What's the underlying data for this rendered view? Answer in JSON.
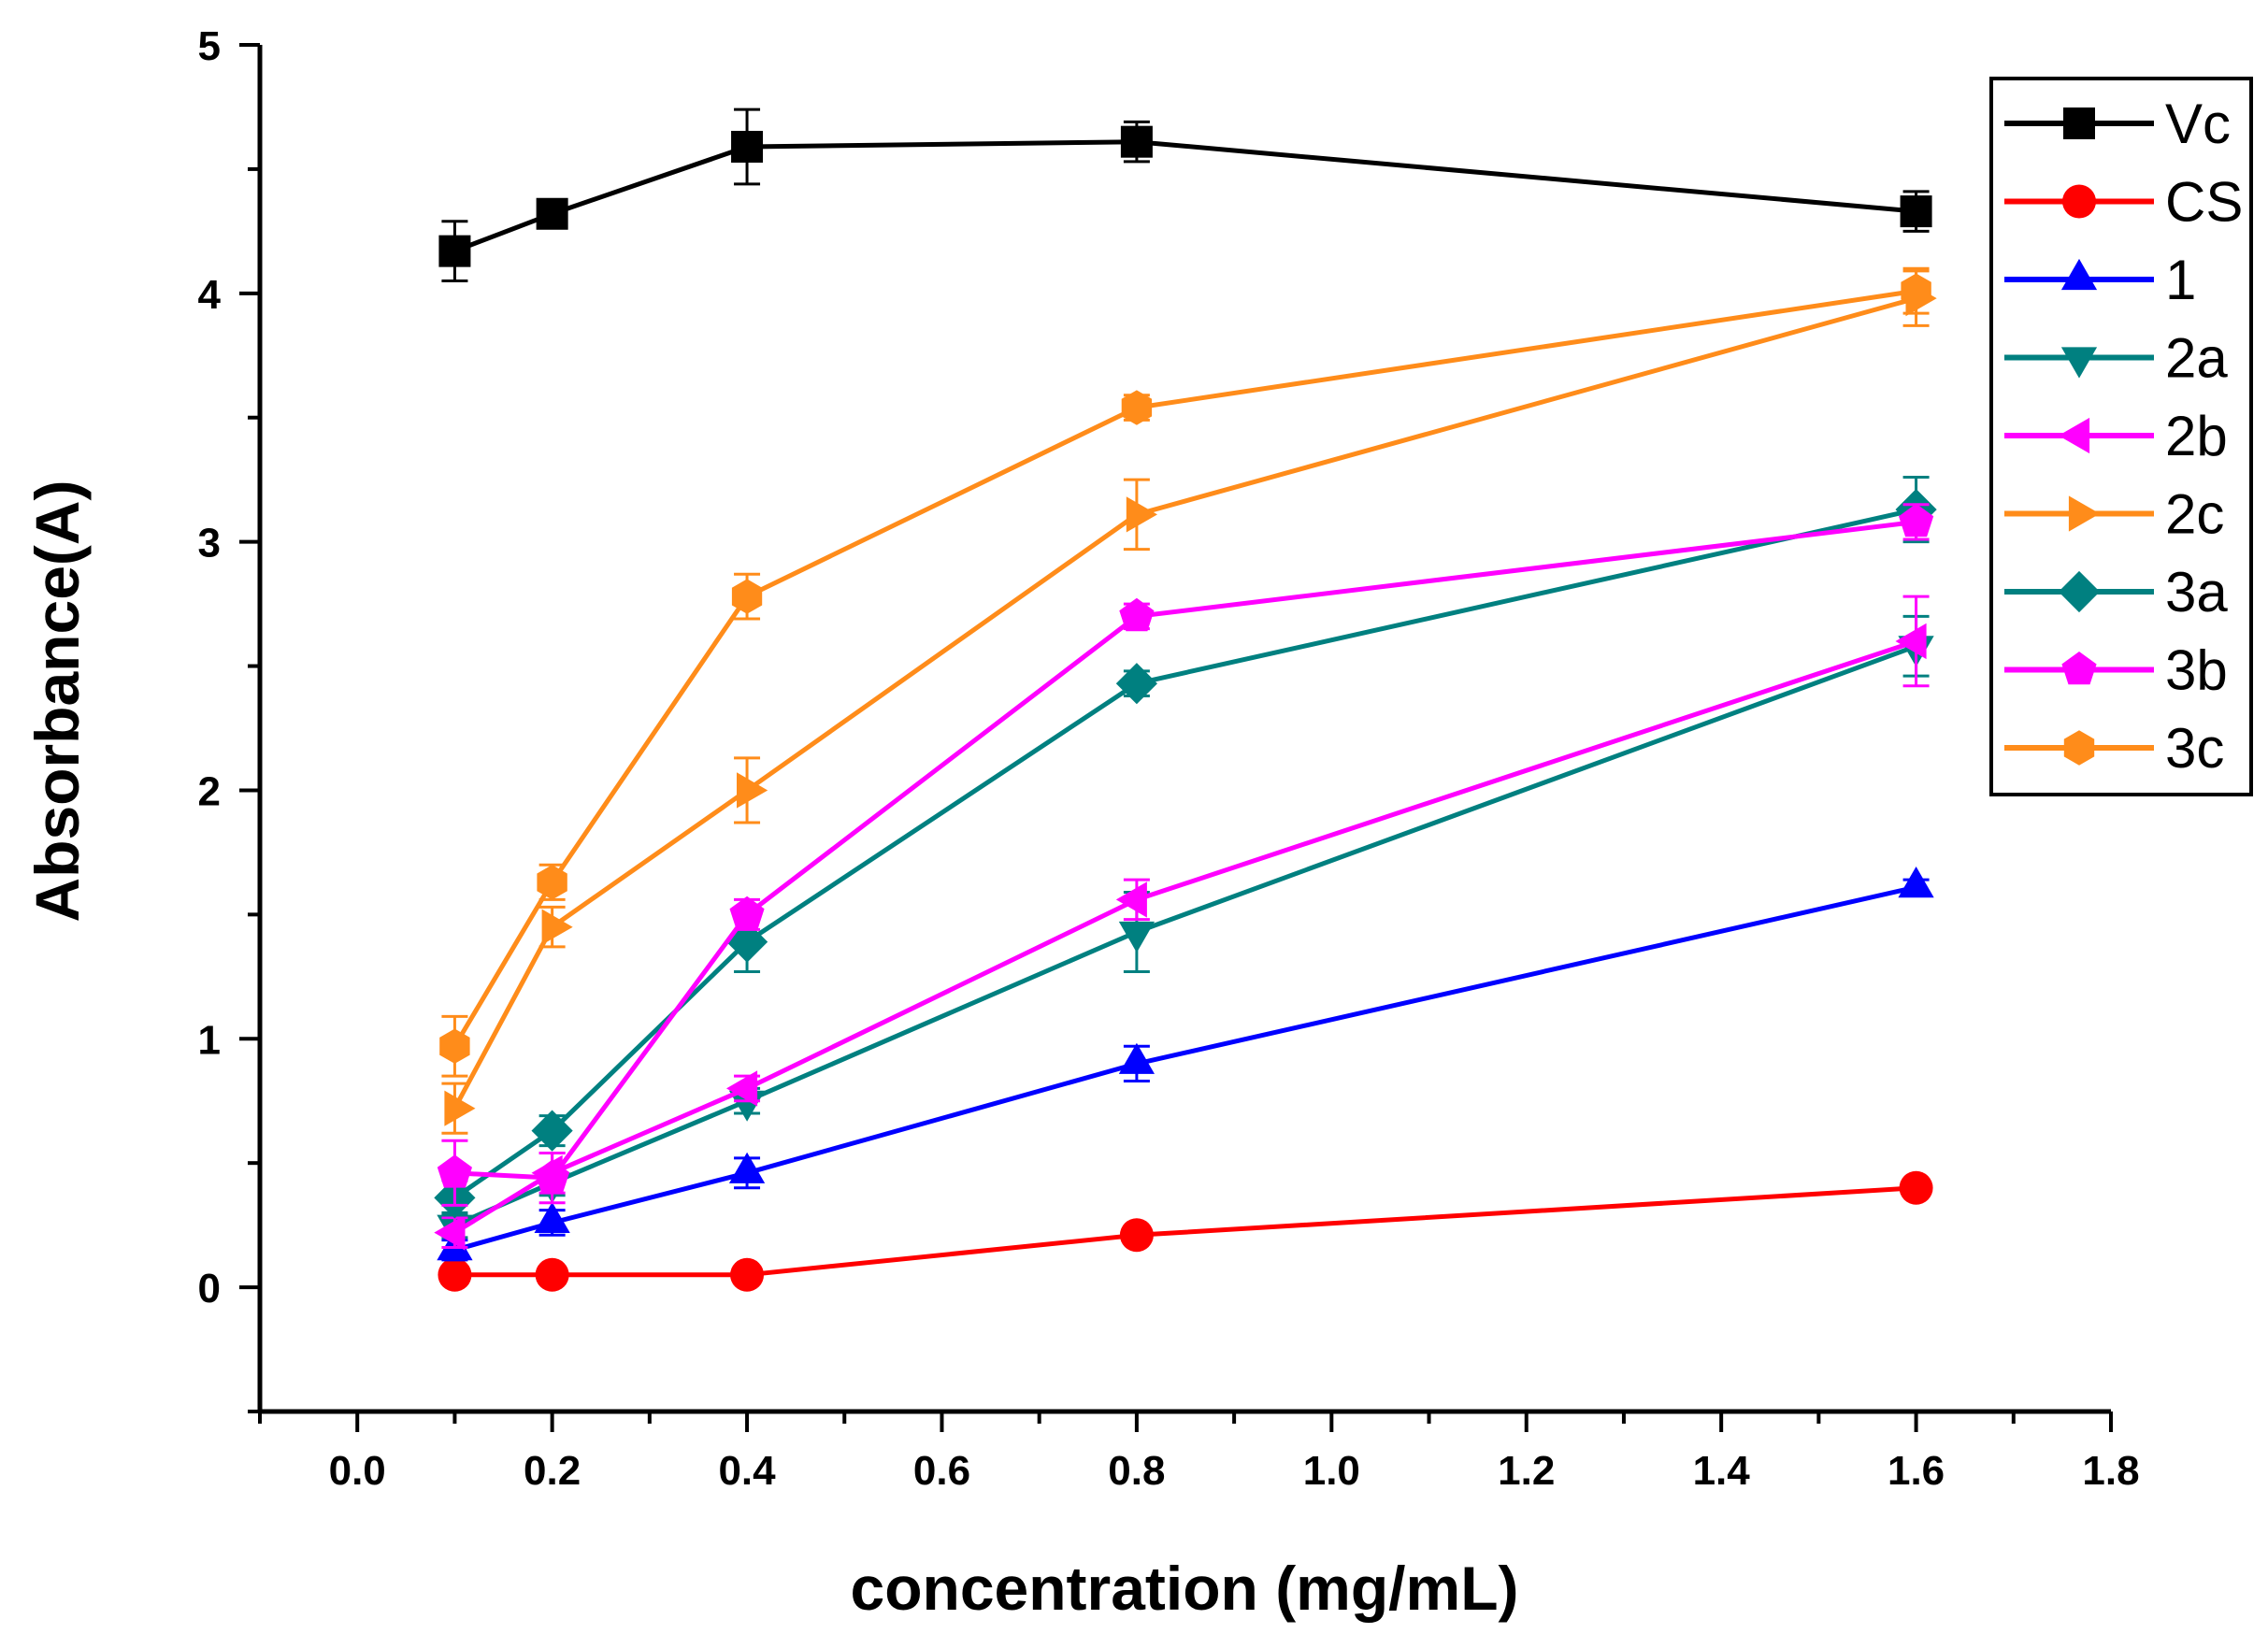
{
  "chart_data": {
    "type": "line",
    "title": "",
    "xlabel": "concentration (mg/mL)",
    "ylabel": "Absorbance(A)",
    "xlim": [
      -0.1,
      1.8
    ],
    "ylim": [
      -0.5,
      5
    ],
    "x_ticks": [
      "0.0",
      "0.2",
      "0.4",
      "0.6",
      "0.8",
      "1.0",
      "1.2",
      "1.4",
      "1.6",
      "1.8"
    ],
    "y_ticks": [
      "0",
      "1",
      "2",
      "3",
      "4",
      "5"
    ],
    "grid": false,
    "legend_position": "top-right",
    "x": [
      0.1,
      0.2,
      0.4,
      0.8,
      1.6
    ],
    "series": [
      {
        "name": "Vc",
        "color": "#000000",
        "marker": "square",
        "values": [
          4.17,
          4.32,
          4.59,
          4.61,
          4.33
        ],
        "errors": [
          0.12,
          0.03,
          0.15,
          0.08,
          0.08
        ]
      },
      {
        "name": "CS",
        "color": "#ff0000",
        "marker": "circle",
        "values": [
          0.05,
          0.05,
          0.05,
          0.21,
          0.4
        ],
        "errors": [
          0.02,
          0.02,
          0.02,
          0.02,
          0.02
        ]
      },
      {
        "name": "1",
        "color": "#0000ff",
        "marker": "triangle-up",
        "values": [
          0.15,
          0.26,
          0.46,
          0.9,
          1.61
        ],
        "errors": [
          0.04,
          0.05,
          0.06,
          0.07,
          0.03
        ]
      },
      {
        "name": "2a",
        "color": "#008080",
        "marker": "triangle-down",
        "values": [
          0.25,
          0.42,
          0.75,
          1.43,
          2.58
        ],
        "errors": [
          0.05,
          0.05,
          0.05,
          0.16,
          0.12
        ]
      },
      {
        "name": "2b",
        "color": "#ff00ff",
        "marker": "triangle-left",
        "values": [
          0.22,
          0.46,
          0.8,
          1.56,
          2.6
        ],
        "errors": [
          0.06,
          0.08,
          0.05,
          0.08,
          0.18
        ]
      },
      {
        "name": "2c",
        "color": "#ff8c1a",
        "marker": "triangle-right",
        "values": [
          0.72,
          1.45,
          2.0,
          3.11,
          3.98
        ],
        "errors": [
          0.1,
          0.08,
          0.13,
          0.14,
          0.11
        ]
      },
      {
        "name": "3a",
        "color": "#008080",
        "marker": "diamond",
        "values": [
          0.36,
          0.63,
          1.39,
          2.43,
          3.13
        ],
        "errors": [
          0.07,
          0.06,
          0.12,
          0.05,
          0.13
        ]
      },
      {
        "name": "3b",
        "color": "#ff00ff",
        "marker": "pentagon",
        "values": [
          0.46,
          0.44,
          1.5,
          2.7,
          3.08
        ],
        "errors": [
          0.13,
          0.1,
          0.06,
          0.05,
          0.07
        ]
      },
      {
        "name": "3c",
        "color": "#ff8c1a",
        "marker": "hexagon",
        "values": [
          0.97,
          1.63,
          2.78,
          3.54,
          4.01
        ],
        "errors": [
          0.12,
          0.07,
          0.09,
          0.05,
          0.09
        ]
      }
    ]
  }
}
